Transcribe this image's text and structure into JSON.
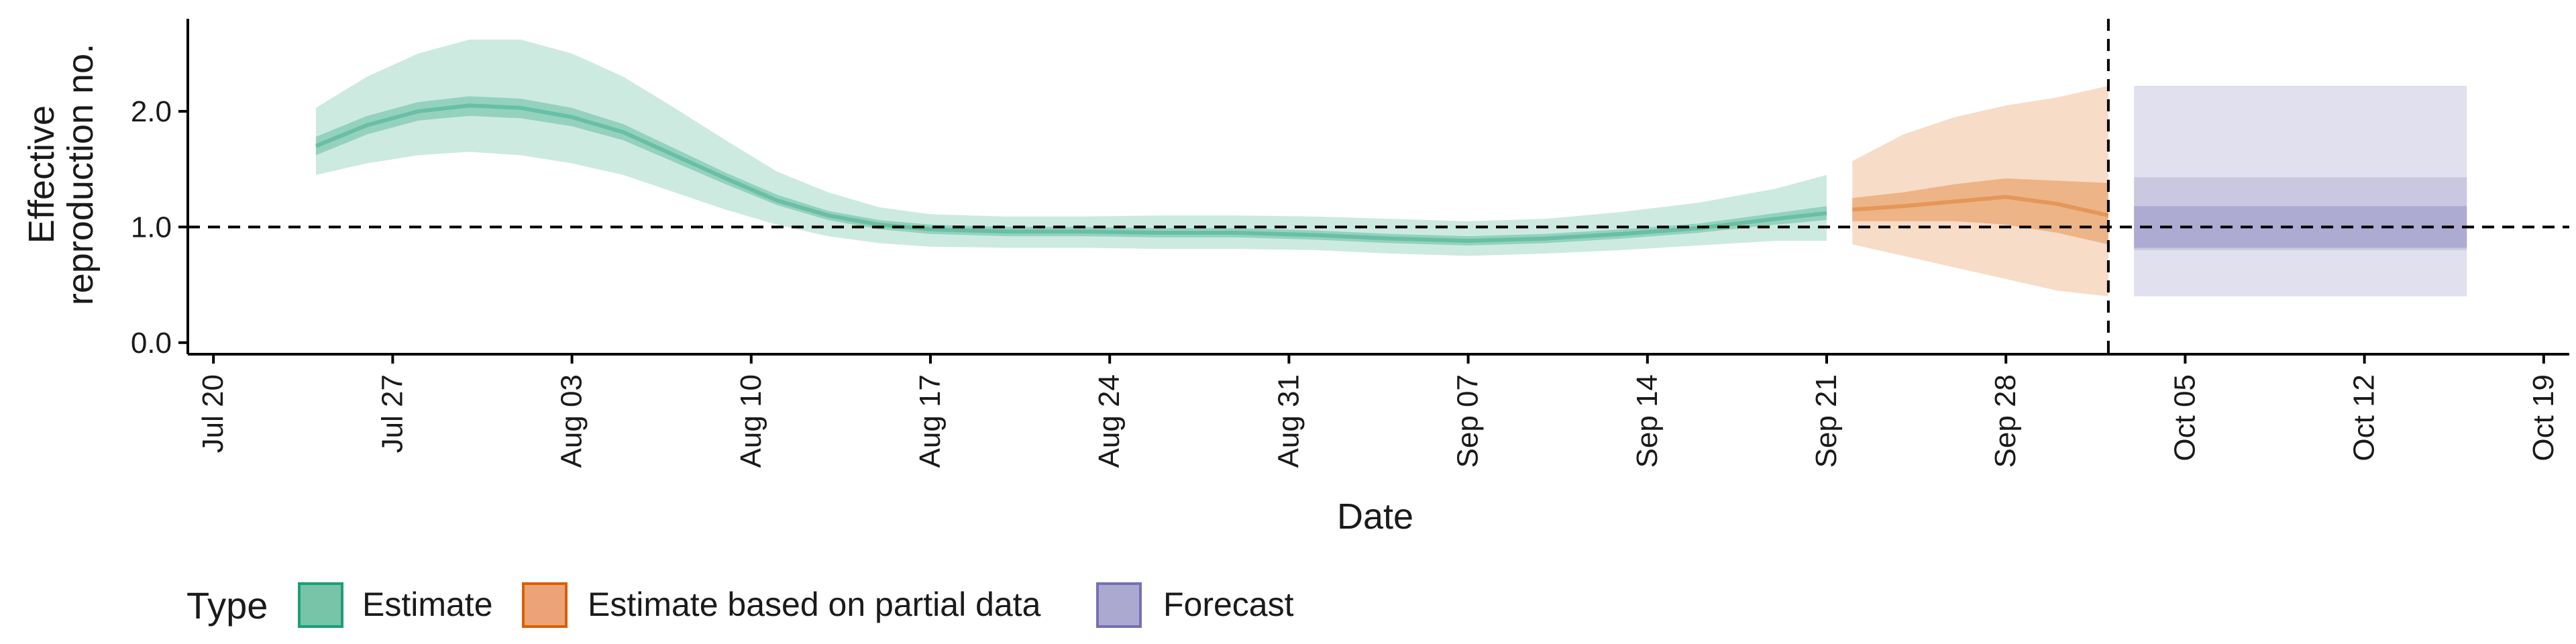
{
  "chart_data": {
    "type": "area",
    "title": "",
    "xlabel": "Date",
    "ylabel_lines": [
      "Effective",
      "reproduction no."
    ],
    "x_ticks": [
      "Jul 20",
      "Jul 27",
      "Aug 03",
      "Aug 10",
      "Aug 17",
      "Aug 24",
      "Aug 31",
      "Sep 07",
      "Sep 14",
      "Sep 21",
      "Sep 28",
      "Oct 05",
      "Oct 12",
      "Oct 19"
    ],
    "y_ticks": [
      "0.0",
      "1.0",
      "2.0"
    ],
    "x_range": [
      "2020-07-19",
      "2020-10-20"
    ],
    "ylim": [
      -0.1,
      2.8
    ],
    "reference_line_y": 1.0,
    "vertical_line_date": "2020-10-02",
    "grid": false,
    "legend": {
      "title": "Type",
      "position": "bottom",
      "entries": [
        {
          "label": "Estimate",
          "color": "#1b9e77"
        },
        {
          "label": "Estimate based on partial data",
          "color": "#d95f02"
        },
        {
          "label": "Forecast",
          "color": "#7570b3"
        }
      ]
    },
    "series": [
      {
        "legend_index": 0,
        "color": "#1b9e77",
        "dates": [
          "2020-07-24",
          "2020-07-26",
          "2020-07-28",
          "2020-07-30",
          "2020-08-01",
          "2020-08-03",
          "2020-08-05",
          "2020-08-07",
          "2020-08-09",
          "2020-08-11",
          "2020-08-13",
          "2020-08-15",
          "2020-08-17",
          "2020-08-20",
          "2020-08-23",
          "2020-08-26",
          "2020-08-29",
          "2020-09-01",
          "2020-09-04",
          "2020-09-07",
          "2020-09-10",
          "2020-09-13",
          "2020-09-16",
          "2020-09-19",
          "2020-09-21"
        ],
        "median": [
          1.7,
          1.88,
          2.0,
          2.05,
          2.03,
          1.95,
          1.82,
          1.62,
          1.42,
          1.23,
          1.1,
          1.02,
          0.98,
          0.96,
          0.96,
          0.95,
          0.95,
          0.93,
          0.9,
          0.88,
          0.9,
          0.94,
          0.99,
          1.07,
          1.12
        ],
        "lower50": [
          1.62,
          1.8,
          1.92,
          1.96,
          1.94,
          1.87,
          1.75,
          1.56,
          1.37,
          1.19,
          1.06,
          0.98,
          0.94,
          0.92,
          0.92,
          0.91,
          0.91,
          0.89,
          0.86,
          0.84,
          0.86,
          0.9,
          0.95,
          1.02,
          1.06
        ],
        "upper50": [
          1.78,
          1.96,
          2.08,
          2.13,
          2.11,
          2.03,
          1.89,
          1.68,
          1.47,
          1.28,
          1.14,
          1.06,
          1.02,
          1.0,
          1.0,
          0.99,
          0.99,
          0.97,
          0.94,
          0.92,
          0.94,
          0.98,
          1.03,
          1.12,
          1.18
        ],
        "lower90": [
          1.45,
          1.55,
          1.62,
          1.65,
          1.62,
          1.55,
          1.45,
          1.3,
          1.15,
          1.02,
          0.92,
          0.86,
          0.83,
          0.82,
          0.82,
          0.81,
          0.81,
          0.8,
          0.77,
          0.75,
          0.77,
          0.8,
          0.84,
          0.88,
          0.88
        ],
        "upper90": [
          2.03,
          2.3,
          2.5,
          2.62,
          2.62,
          2.5,
          2.3,
          2.03,
          1.75,
          1.48,
          1.3,
          1.17,
          1.11,
          1.09,
          1.09,
          1.1,
          1.1,
          1.09,
          1.07,
          1.05,
          1.07,
          1.13,
          1.21,
          1.33,
          1.45
        ]
      },
      {
        "legend_index": 1,
        "color": "#d95f02",
        "dates": [
          "2020-09-22",
          "2020-09-24",
          "2020-09-26",
          "2020-09-28",
          "2020-09-30",
          "2020-10-02"
        ],
        "median": [
          1.15,
          1.18,
          1.22,
          1.26,
          1.2,
          1.1
        ],
        "lower50": [
          1.05,
          1.05,
          1.05,
          1.02,
          0.95,
          0.85
        ],
        "upper50": [
          1.25,
          1.3,
          1.37,
          1.42,
          1.4,
          1.38
        ],
        "lower90": [
          0.85,
          0.75,
          0.65,
          0.55,
          0.45,
          0.4
        ],
        "upper90": [
          1.57,
          1.8,
          1.95,
          2.05,
          2.12,
          2.22
        ]
      },
      {
        "legend_index": 2,
        "color": "#7570b3",
        "dates": [
          "2020-10-03",
          "2020-10-16"
        ],
        "median": [
          1.0,
          1.0
        ],
        "lower50": [
          0.82,
          0.82
        ],
        "upper50": [
          1.18,
          1.18
        ],
        "lower90": [
          0.8,
          0.8
        ],
        "upper90": [
          1.43,
          1.43
        ],
        "lower_outer": [
          0.4,
          0.4
        ],
        "upper_outer": [
          2.22,
          2.22
        ]
      }
    ]
  }
}
